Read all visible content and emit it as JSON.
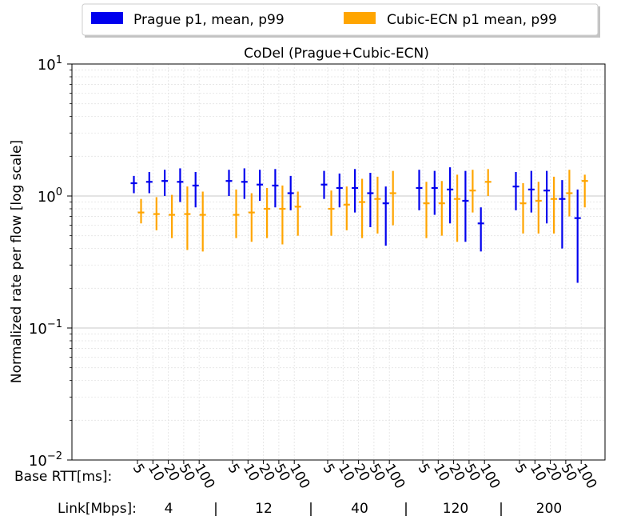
{
  "legend": {
    "items": [
      {
        "label": "Prague p1, mean, p99",
        "color": "#0000ee"
      },
      {
        "label": "Cubic-ECN p1 mean, p99",
        "color": "#ffa500"
      }
    ]
  },
  "chart_data": {
    "type": "errorbar",
    "title": "CoDel (Prague+Cubic-ECN)",
    "ylabel": "Normalized rate per flow [log scale]",
    "yscale": "log",
    "ylim": [
      0.01,
      10
    ],
    "yticks": [
      {
        "value": 0.01,
        "base": "10",
        "exp": "−2"
      },
      {
        "value": 0.1,
        "base": "10",
        "exp": "−1"
      },
      {
        "value": 1,
        "base": "10",
        "exp": "0"
      },
      {
        "value": 10,
        "base": "10",
        "exp": "1"
      }
    ],
    "grid": true,
    "legend_position": "top, outside plot",
    "x_row_label_rtt": "Base RTT[ms]:",
    "x_row_label_link": "Link[Mbps]:",
    "rtt_labels": [
      "5",
      "10",
      "20",
      "50",
      "100"
    ],
    "link_groups": [
      "4",
      "12",
      "40",
      "120",
      "200"
    ],
    "link_separator": "|",
    "series": [
      {
        "name": "Prague p1, mean, p99",
        "color": "#0000ee",
        "groups": [
          {
            "link": "4",
            "points": [
              {
                "rtt": "5",
                "p1": 1.05,
                "mean": 1.25,
                "p99": 1.42
              },
              {
                "rtt": "10",
                "p1": 1.05,
                "mean": 1.28,
                "p99": 1.52
              },
              {
                "rtt": "20",
                "p1": 1.0,
                "mean": 1.3,
                "p99": 1.58
              },
              {
                "rtt": "50",
                "p1": 0.9,
                "mean": 1.28,
                "p99": 1.62
              },
              {
                "rtt": "100",
                "p1": 0.82,
                "mean": 1.2,
                "p99": 1.52
              }
            ]
          },
          {
            "link": "12",
            "points": [
              {
                "rtt": "5",
                "p1": 1.0,
                "mean": 1.3,
                "p99": 1.58
              },
              {
                "rtt": "10",
                "p1": 0.95,
                "mean": 1.28,
                "p99": 1.62
              },
              {
                "rtt": "20",
                "p1": 0.92,
                "mean": 1.22,
                "p99": 1.58
              },
              {
                "rtt": "50",
                "p1": 0.82,
                "mean": 1.2,
                "p99": 1.6
              },
              {
                "rtt": "100",
                "p1": 0.78,
                "mean": 1.05,
                "p99": 1.42
              }
            ]
          },
          {
            "link": "40",
            "points": [
              {
                "rtt": "5",
                "p1": 0.95,
                "mean": 1.22,
                "p99": 1.55
              },
              {
                "rtt": "10",
                "p1": 0.82,
                "mean": 1.15,
                "p99": 1.48
              },
              {
                "rtt": "20",
                "p1": 0.75,
                "mean": 1.15,
                "p99": 1.6
              },
              {
                "rtt": "50",
                "p1": 0.58,
                "mean": 1.05,
                "p99": 1.5
              },
              {
                "rtt": "100",
                "p1": 0.42,
                "mean": 0.88,
                "p99": 1.18
              }
            ]
          },
          {
            "link": "120",
            "points": [
              {
                "rtt": "5",
                "p1": 0.78,
                "mean": 1.15,
                "p99": 1.58
              },
              {
                "rtt": "10",
                "p1": 0.72,
                "mean": 1.15,
                "p99": 1.55
              },
              {
                "rtt": "20",
                "p1": 0.62,
                "mean": 1.12,
                "p99": 1.65
              },
              {
                "rtt": "50",
                "p1": 0.45,
                "mean": 0.92,
                "p99": 1.55
              },
              {
                "rtt": "100",
                "p1": 0.38,
                "mean": 0.62,
                "p99": 0.82
              }
            ]
          },
          {
            "link": "200",
            "points": [
              {
                "rtt": "5",
                "p1": 0.78,
                "mean": 1.18,
                "p99": 1.52
              },
              {
                "rtt": "10",
                "p1": 0.75,
                "mean": 1.12,
                "p99": 1.55
              },
              {
                "rtt": "20",
                "p1": 0.62,
                "mean": 1.1,
                "p99": 1.55
              },
              {
                "rtt": "50",
                "p1": 0.4,
                "mean": 0.95,
                "p99": 1.32
              },
              {
                "rtt": "100",
                "p1": 0.22,
                "mean": 0.68,
                "p99": 1.12
              }
            ]
          }
        ]
      },
      {
        "name": "Cubic-ECN p1 mean, p99",
        "color": "#ffa500",
        "groups": [
          {
            "link": "4",
            "points": [
              {
                "rtt": "5",
                "p1": 0.62,
                "mean": 0.75,
                "p99": 0.95
              },
              {
                "rtt": "10",
                "p1": 0.55,
                "mean": 0.73,
                "p99": 0.98
              },
              {
                "rtt": "20",
                "p1": 0.48,
                "mean": 0.72,
                "p99": 1.02
              },
              {
                "rtt": "50",
                "p1": 0.39,
                "mean": 0.73,
                "p99": 1.18
              },
              {
                "rtt": "100",
                "p1": 0.38,
                "mean": 0.72,
                "p99": 1.08
              }
            ]
          },
          {
            "link": "12",
            "points": [
              {
                "rtt": "5",
                "p1": 0.48,
                "mean": 0.72,
                "p99": 1.12
              },
              {
                "rtt": "10",
                "p1": 0.45,
                "mean": 0.75,
                "p99": 1.05
              },
              {
                "rtt": "20",
                "p1": 0.48,
                "mean": 0.8,
                "p99": 1.15
              },
              {
                "rtt": "50",
                "p1": 0.43,
                "mean": 0.8,
                "p99": 1.2
              },
              {
                "rtt": "100",
                "p1": 0.5,
                "mean": 0.83,
                "p99": 1.08
              }
            ]
          },
          {
            "link": "40",
            "points": [
              {
                "rtt": "5",
                "p1": 0.5,
                "mean": 0.8,
                "p99": 1.1
              },
              {
                "rtt": "10",
                "p1": 0.55,
                "mean": 0.86,
                "p99": 1.18
              },
              {
                "rtt": "20",
                "p1": 0.48,
                "mean": 0.9,
                "p99": 1.35
              },
              {
                "rtt": "50",
                "p1": 0.52,
                "mean": 0.95,
                "p99": 1.4
              },
              {
                "rtt": "100",
                "p1": 0.6,
                "mean": 1.05,
                "p99": 1.55
              }
            ]
          },
          {
            "link": "120",
            "points": [
              {
                "rtt": "5",
                "p1": 0.48,
                "mean": 0.88,
                "p99": 1.28
              },
              {
                "rtt": "10",
                "p1": 0.5,
                "mean": 0.88,
                "p99": 1.3
              },
              {
                "rtt": "20",
                "p1": 0.45,
                "mean": 0.95,
                "p99": 1.45
              },
              {
                "rtt": "50",
                "p1": 0.75,
                "mean": 1.1,
                "p99": 1.58
              },
              {
                "rtt": "100",
                "p1": 1.0,
                "mean": 1.28,
                "p99": 1.6
              }
            ]
          },
          {
            "link": "200",
            "points": [
              {
                "rtt": "5",
                "p1": 0.52,
                "mean": 0.88,
                "p99": 1.25
              },
              {
                "rtt": "10",
                "p1": 0.52,
                "mean": 0.92,
                "p99": 1.28
              },
              {
                "rtt": "20",
                "p1": 0.52,
                "mean": 0.95,
                "p99": 1.4
              },
              {
                "rtt": "50",
                "p1": 0.7,
                "mean": 1.05,
                "p99": 1.58
              },
              {
                "rtt": "100",
                "p1": 0.82,
                "mean": 1.3,
                "p99": 1.45
              }
            ]
          }
        ]
      }
    ]
  }
}
